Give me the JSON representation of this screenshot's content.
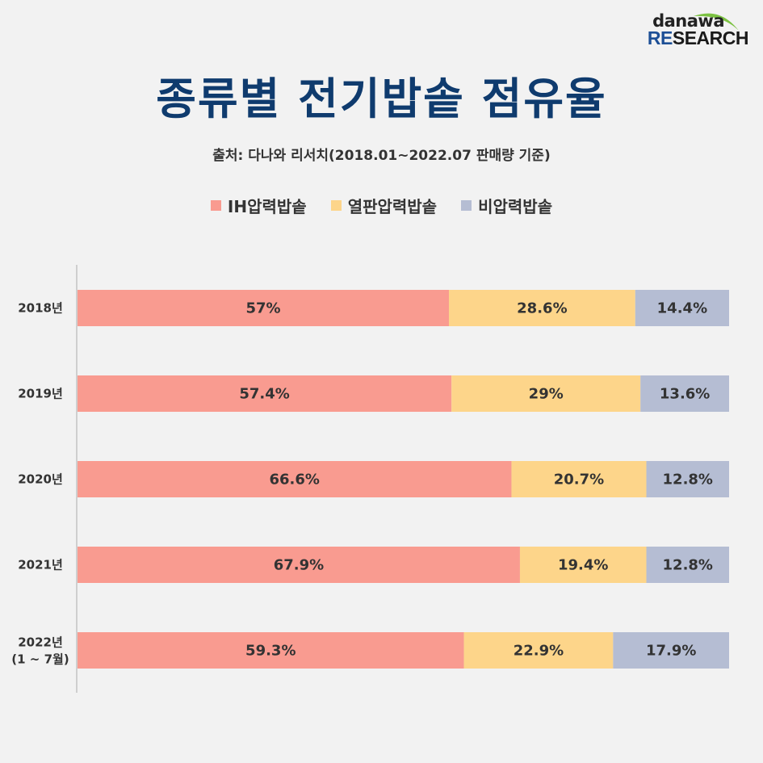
{
  "logo": {
    "top": "danawa",
    "bottom_accent": "RE",
    "bottom_rest": "SEARCH"
  },
  "colors": {
    "ih": "#f99b90",
    "heat": "#fdd58a",
    "nonpressure": "#b5bdd3",
    "title": "#0f3b6e",
    "logo_green": "#7cc242"
  },
  "chart_data": {
    "type": "bar",
    "orientation": "horizontal-stacked-100",
    "title": "종류별 전기밥솥 점유율",
    "subtitle": "출처: 다나와 리서치(2018.01~2022.07 판매량 기준)",
    "categories": [
      "2018년",
      "2019년",
      "2020년",
      "2021년",
      "2022년\n(1~7월)"
    ],
    "category_lines": [
      [
        "2018년"
      ],
      [
        "2019년"
      ],
      [
        "2020년"
      ],
      [
        "2021년"
      ],
      [
        "2022년",
        "(1 ~ 7월)"
      ]
    ],
    "series": [
      {
        "name": "IH압력밥솥",
        "color": "#f99b90",
        "values": [
          57,
          57.4,
          66.6,
          67.9,
          59.3
        ],
        "labels": [
          "57%",
          "57.4%",
          "66.6%",
          "67.9%",
          "59.3%"
        ]
      },
      {
        "name": "열판압력밥솥",
        "color": "#fdd58a",
        "values": [
          28.6,
          29,
          20.7,
          19.4,
          22.9
        ],
        "labels": [
          "28.6%",
          "29%",
          "20.7%",
          "19.4%",
          "22.9%"
        ]
      },
      {
        "name": "비압력밥솥",
        "color": "#b5bdd3",
        "values": [
          14.4,
          13.6,
          12.8,
          12.8,
          17.9
        ],
        "labels": [
          "14.4%",
          "13.6%",
          "12.8%",
          "12.8%",
          "17.9%"
        ]
      }
    ],
    "xlim": [
      0,
      100
    ],
    "legend": "top-center"
  }
}
